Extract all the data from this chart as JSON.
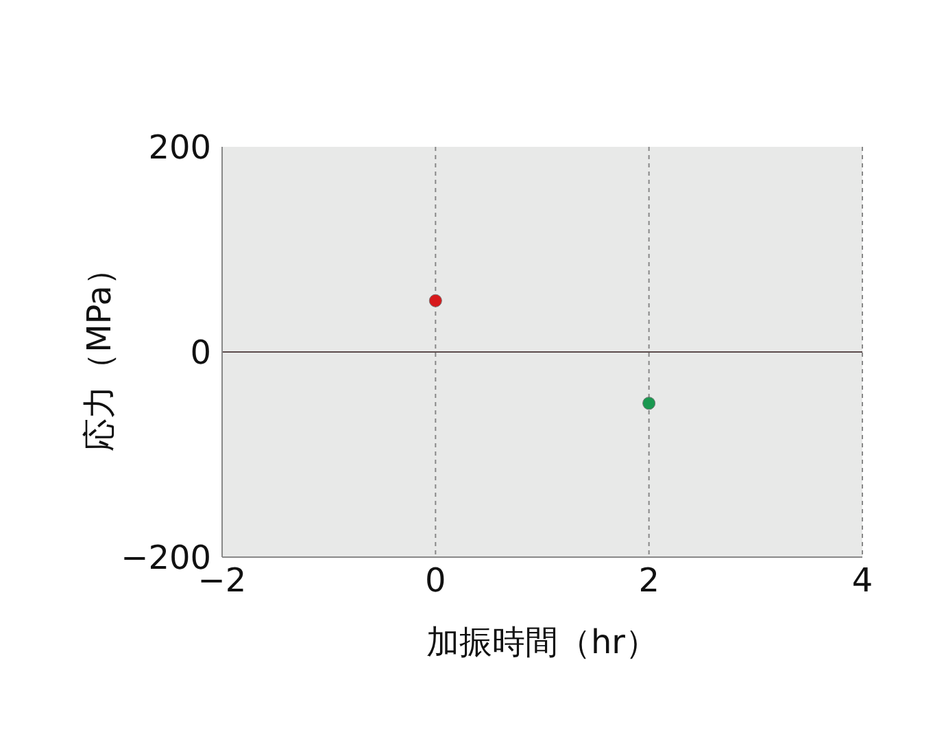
{
  "chart_data": {
    "type": "scatter",
    "xlabel": "加振時間（hr）",
    "ylabel": "応力（MPa）",
    "x": [
      0,
      2
    ],
    "values": [
      50,
      -50
    ],
    "colors": [
      "#d7191c",
      "#1a9850"
    ],
    "xlim": [
      -2,
      4
    ],
    "xticks": [
      -2,
      0,
      2,
      4
    ],
    "ylim": [
      -200,
      200
    ],
    "yticks": [
      -200,
      0,
      200
    ],
    "grid": "x",
    "marker": "circle",
    "ref_lines": [
      {
        "axis": "y",
        "value": 0,
        "color": "#5b4b4b",
        "line_style": "solid"
      }
    ]
  }
}
